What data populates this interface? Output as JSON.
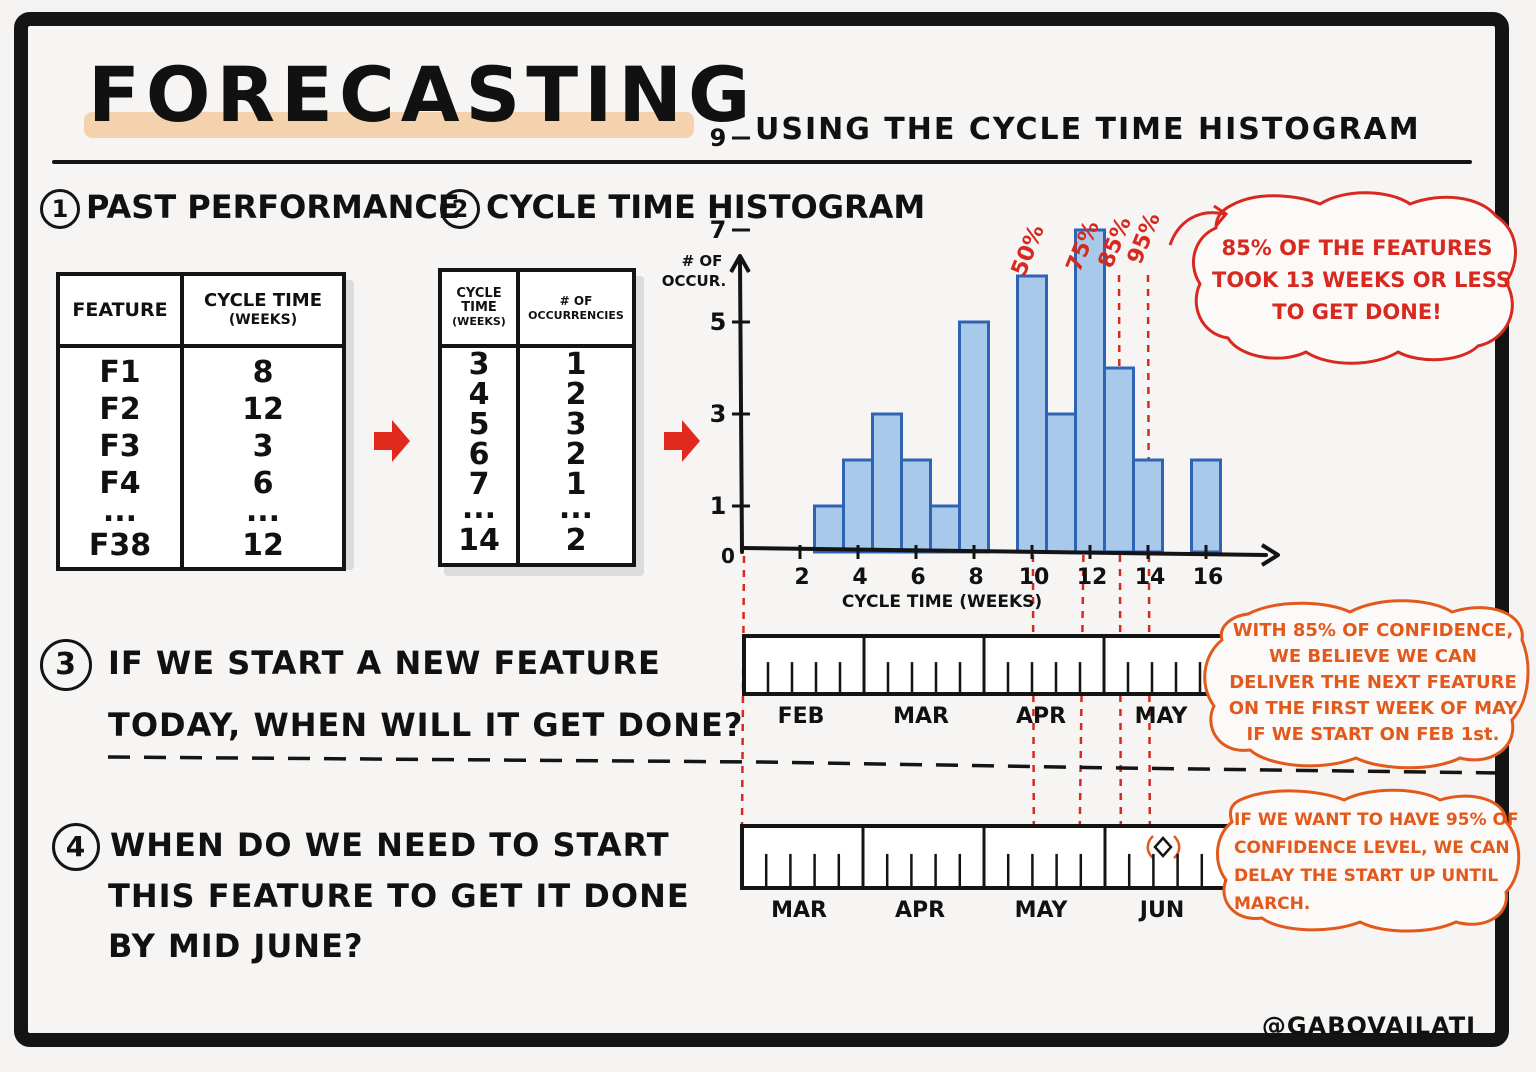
{
  "header": {
    "title": "FORECASTING",
    "subtitle": "USING THE CYCLE TIME HISTOGRAM"
  },
  "step1": {
    "number": "1",
    "title": "PAST PERFORMANCE",
    "table": {
      "col1_header": "FEATURE",
      "col2_header_line1": "CYCLE TIME",
      "col2_header_line2": "(WEEKS)",
      "rows": [
        {
          "feature": "F1",
          "weeks": "8"
        },
        {
          "feature": "F2",
          "weeks": "12"
        },
        {
          "feature": "F3",
          "weeks": "3"
        },
        {
          "feature": "F4",
          "weeks": "6"
        },
        {
          "feature": "...",
          "weeks": "..."
        },
        {
          "feature": "F38",
          "weeks": "12"
        }
      ]
    }
  },
  "step2": {
    "number": "2",
    "title": "CYCLE TIME HISTOGRAM",
    "table": {
      "col1_header_line1": "CYCLE",
      "col1_header_line2": "TIME",
      "col1_header_line3": "(WEEKS)",
      "col2_header_line1": "# OF",
      "col2_header_line2": "OCCURRENCIES",
      "rows": [
        {
          "time": "3",
          "count": "1"
        },
        {
          "time": "4",
          "count": "2"
        },
        {
          "time": "5",
          "count": "3"
        },
        {
          "time": "6",
          "count": "2"
        },
        {
          "time": "7",
          "count": "1"
        },
        {
          "time": "...",
          "count": "..."
        },
        {
          "time": "14",
          "count": "2"
        }
      ]
    }
  },
  "chart_data": {
    "type": "bar",
    "xlabel": "CYCLE TIME (WEEKS)",
    "ylabel_line1": "# OF",
    "ylabel_line2": "OCCUR.",
    "origin_label": "0",
    "x_ticks": [
      2,
      4,
      6,
      8,
      10,
      12,
      14,
      16
    ],
    "y_ticks": [
      1,
      3,
      5,
      7,
      9
    ],
    "xlim": [
      0,
      17.5
    ],
    "ylim": [
      0,
      10
    ],
    "bars": [
      {
        "x": 3,
        "value": 1
      },
      {
        "x": 4,
        "value": 2
      },
      {
        "x": 5,
        "value": 3
      },
      {
        "x": 6,
        "value": 2
      },
      {
        "x": 7,
        "value": 1
      },
      {
        "x": 8,
        "value": 5
      },
      {
        "x": 10,
        "value": 6
      },
      {
        "x": 11,
        "value": 3
      },
      {
        "x": 12,
        "value": 7
      },
      {
        "x": 13,
        "value": 4
      },
      {
        "x": 14,
        "value": 2
      },
      {
        "x": 16,
        "value": 2
      }
    ],
    "percentiles": [
      {
        "label": "50%",
        "x": 10
      },
      {
        "label": "75%",
        "x": 11.9
      },
      {
        "label": "85%",
        "x": 13
      },
      {
        "label": "95%",
        "x": 14
      }
    ],
    "bar_color": "#a9c9ea",
    "bar_stroke": "#2f63b4",
    "percentile_color": "#d7291f"
  },
  "callout1": {
    "line1": "85% OF THE FEATURES",
    "line2": "TOOK 13 WEEKS OR LESS",
    "line3": "TO GET DONE!"
  },
  "step3": {
    "number": "3",
    "line1": "IF WE START A NEW FEATURE",
    "line2": "TODAY, WHEN WILL IT GET DONE?",
    "months": [
      "FEB",
      "MAR",
      "APR",
      "MAY"
    ]
  },
  "callout2": {
    "line1": "WITH 85% OF CONFIDENCE,",
    "line2": "WE BELIEVE WE CAN",
    "line3": "DELIVER THE NEXT FEATURE",
    "line4": "ON THE FIRST WEEK OF MAY",
    "line5": "IF WE START ON FEB 1st."
  },
  "step4": {
    "number": "4",
    "line1": "WHEN DO WE NEED TO START",
    "line2": "THIS FEATURE TO GET IT DONE",
    "line3": "BY MID JUNE?",
    "months": [
      "MAR",
      "APR",
      "MAY",
      "JUN"
    ]
  },
  "callout3": {
    "line1": "IF WE WANT TO HAVE 95% OF",
    "line2": "CONFIDENCE LEVEL, WE CAN",
    "line3": "DELAY THE START UP UNTIL",
    "line4": "MARCH."
  },
  "footer": {
    "handle": "@GABOVAILATI"
  },
  "colors": {
    "ink": "#141414",
    "red": "#d7291f",
    "orange": "#e2591b",
    "highlight": "#f2c99b",
    "bar_fill": "#a9c9ea",
    "bar_stroke": "#2f63b4"
  }
}
